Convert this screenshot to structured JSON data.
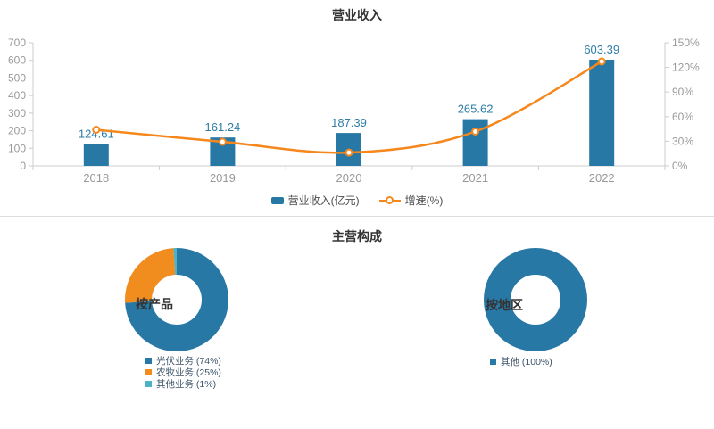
{
  "page": {
    "composition_title": "主营构成"
  },
  "chart_data": [
    {
      "type": "bar",
      "title": "营业收入",
      "categories": [
        "2018",
        "2019",
        "2020",
        "2021",
        "2022"
      ],
      "series": [
        {
          "name": "营业收入(亿元)",
          "type": "bar",
          "axis": "left",
          "color": "#2878a6",
          "values": [
            124.61,
            161.24,
            187.39,
            265.62,
            603.39
          ],
          "labels": [
            "124.61",
            "161.24",
            "187.39",
            "265.62",
            "603.39"
          ],
          "label_color": "#2e7ea6"
        },
        {
          "name": "增速(%)",
          "type": "line",
          "axis": "right",
          "color": "#f5871d",
          "smooth": true,
          "values": [
            44,
            29.4,
            16.2,
            41.8,
            127.2
          ]
        }
      ],
      "left_axis": {
        "min": 0,
        "max": 700,
        "step": 100,
        "labels": [
          "0",
          "100",
          "200",
          "300",
          "400",
          "500",
          "600",
          "700"
        ]
      },
      "right_axis": {
        "min": 0,
        "max": 150,
        "step": 30,
        "labels": [
          "0%",
          "30%",
          "60%",
          "90%",
          "120%",
          "150%"
        ]
      },
      "legend_position": "bottom",
      "grid": false
    },
    {
      "type": "pie",
      "label": "按产品",
      "inner_radius_ratio": 0.48,
      "slices": [
        {
          "name": "光伏业务",
          "pct": 74,
          "color": "#2878a6",
          "legend": "光伏业务 (74%)"
        },
        {
          "name": "农牧业务",
          "pct": 25,
          "color": "#f18c1f",
          "legend": "农牧业务 (25%)"
        },
        {
          "name": "其他业务",
          "pct": 1,
          "color": "#4db3c4",
          "legend": "其他业务 (1%)"
        }
      ]
    },
    {
      "type": "pie",
      "label": "按地区",
      "inner_radius_ratio": 0.48,
      "slices": [
        {
          "name": "其他",
          "pct": 100,
          "color": "#2878a6",
          "legend": "其他 (100%)"
        }
      ]
    }
  ],
  "colors": {
    "axis_line": "#cccccc",
    "axis_text": "#999999",
    "title_text": "#333333",
    "legend_text": "#4d4d4d",
    "pie_legend_text": "#3b5368",
    "divider": "#dddddd"
  }
}
